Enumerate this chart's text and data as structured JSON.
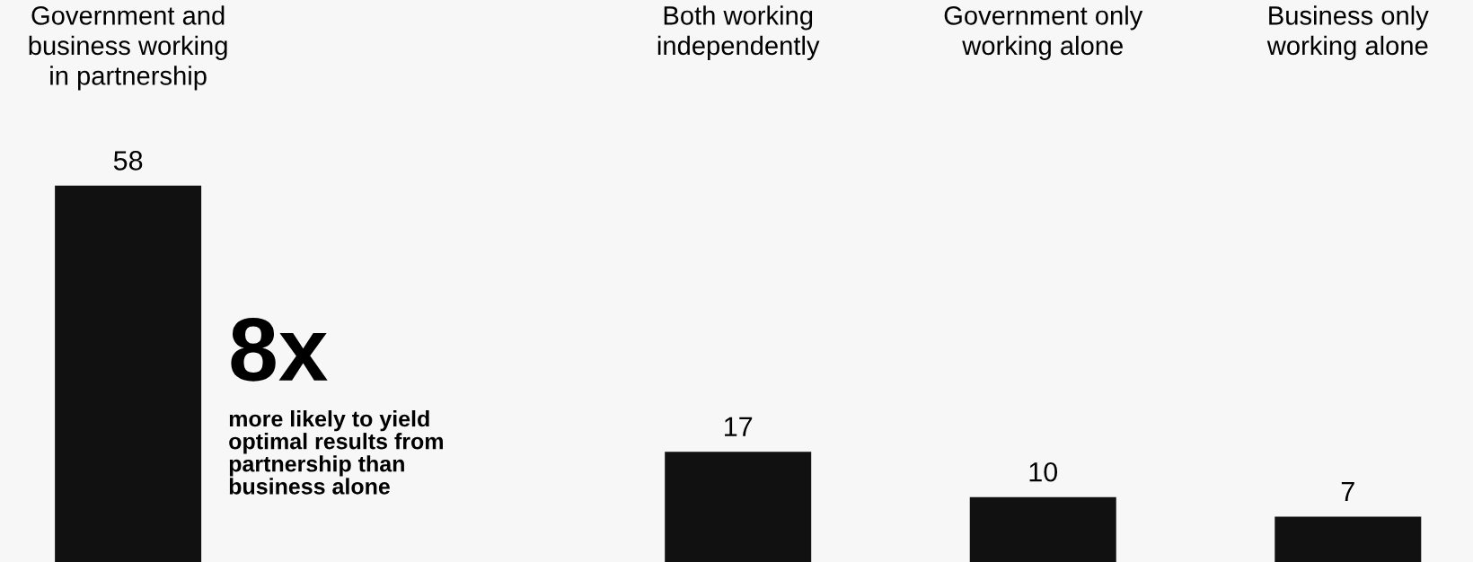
{
  "chart_data": {
    "type": "bar",
    "categories": [
      "Government and\nbusiness working\nin partnership",
      null,
      "Both working\nindependently",
      "Government only\nworking alone",
      "Business only\nworking alone"
    ],
    "values": [
      58,
      null,
      17,
      10,
      7
    ],
    "color": "#111111",
    "data_labels": true,
    "annotations": [
      "8x",
      "more likely to yield\noptimal results from\npartnership than\nbusiness alone"
    ]
  }
}
